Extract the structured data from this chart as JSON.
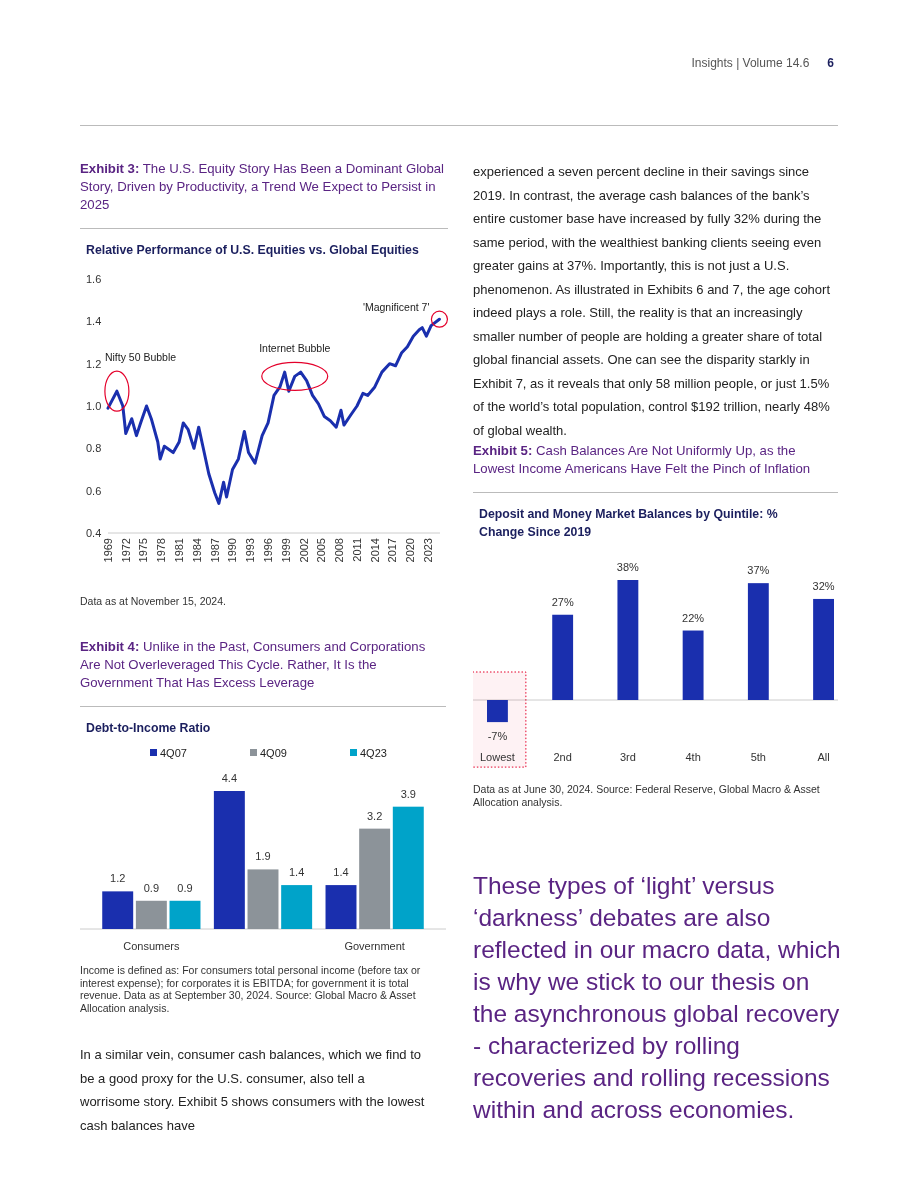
{
  "chart_data": [
    {
      "type": "other",
      "annotations": [
        "Insights | Volume 14.6",
        "6"
      ]
    },
    {
      "type": "line",
      "title": "Exhibit 3: The U.S. Equity Story Has Been a Dominant Global Story, Driven by Productivity, a Trend We Expect to Persist in 2025",
      "subtitle": "Relative Performance of U.S. Equities vs. Global Equities",
      "x": [
        1969,
        1970.5,
        1971.5,
        1972,
        1973,
        1973.8,
        1974.5,
        1975.5,
        1976.3,
        1977.4,
        1977.8,
        1978.5,
        1980,
        1981,
        1981.7,
        1982.5,
        1983.5,
        1984.3,
        1985,
        1986,
        1987,
        1987.7,
        1988.5,
        1989,
        1990,
        1991,
        1992,
        1992.7,
        1993.8,
        1995,
        1996,
        1997,
        1998,
        1998.8,
        1999.5,
        2000.5,
        2001.5,
        2002.5,
        2003.5,
        2004.5,
        2005.5,
        2006.5,
        2007.5,
        2008.3,
        2008.8,
        2010,
        2011,
        2012,
        2012.8,
        2014,
        2015.2,
        2016.5,
        2017.5,
        2018.5,
        2019.5,
        2020.5,
        2021.5,
        2022,
        2022.7,
        2023.5,
        2024.9
      ],
      "values": [
        0.99,
        1.07,
        1.0,
        0.87,
        0.94,
        0.86,
        0.92,
        1.0,
        0.94,
        0.83,
        0.75,
        0.81,
        0.78,
        0.83,
        0.92,
        0.89,
        0.8,
        0.9,
        0.81,
        0.68,
        0.59,
        0.54,
        0.64,
        0.57,
        0.7,
        0.75,
        0.88,
        0.78,
        0.73,
        0.86,
        0.92,
        1.05,
        1.09,
        1.16,
        1.07,
        1.14,
        1.16,
        1.12,
        1.05,
        1.01,
        0.95,
        0.93,
        0.9,
        0.98,
        0.91,
        0.96,
        1.0,
        1.06,
        1.05,
        1.09,
        1.16,
        1.2,
        1.19,
        1.25,
        1.28,
        1.33,
        1.36,
        1.37,
        1.33,
        1.38,
        1.41
      ],
      "color": "#1a2fae",
      "xlim": [
        1969,
        2025
      ],
      "xticks": [
        1969,
        1972,
        1975,
        1978,
        1981,
        1984,
        1987,
        1990,
        1993,
        1996,
        1999,
        2002,
        2005,
        2008,
        2011,
        2014,
        2017,
        2020,
        2023
      ],
      "ylim": [
        0.4,
        1.6
      ],
      "yticks": [
        0.4,
        0.6,
        0.8,
        {
          "value": 1,
          "label": "1.0"
        },
        1.2,
        1.4,
        1.6
      ],
      "grid": false,
      "annotations": [
        {
          "text": "Nifty 50 Bubble",
          "x": 1970.5,
          "y": 1.07
        },
        {
          "text": "Internet Bubble",
          "x": 2000.5,
          "y": 1.14
        },
        {
          "text": "'Magnificent 7'",
          "x": 2024.9,
          "y": 1.41
        },
        "Data as at November 15, 2024."
      ]
    },
    {
      "type": "bar",
      "title": "Exhibit 4: Unlike in the Past, Consumers and Corporations Are Not Overleveraged This Cycle. Rather, It Is the Government That Has Excess Leverage",
      "subtitle": "Debt-to-Income Ratio",
      "categories": [
        "Consumers",
        null,
        "Government"
      ],
      "series": [
        {
          "name": "4Q07",
          "color": "#1a2fae",
          "values": [
            1.2,
            4.4,
            1.4
          ]
        },
        {
          "name": "4Q09",
          "color": "#8c9399",
          "values": [
            0.9,
            1.9,
            3.2
          ]
        },
        {
          "name": "4Q23",
          "color": "#00a3c9",
          "values": [
            0.9,
            1.4,
            3.9
          ]
        }
      ],
      "data_labels": true,
      "legend": "top",
      "annotations": [
        "Income is defined as: For consumers total personal income (before tax or interest expense); for corporates it is EBITDA; for government it is total revenue. Data as at September 30, 2024. Source: Global Macro & Asset Allocation analysis."
      ]
    },
    {
      "type": "other",
      "annotations": [
        "In a similar vein, consumer cash balances, which we find to be a good proxy for the U.S. consumer, also tell a worrisome story. Exhibit 5 shows consumers with the lowest cash balances have"
      ]
    },
    {
      "type": "other",
      "annotations": [
        "experienced a seven percent decline in their savings since 2019. In contrast, the average cash balances of the bank’s entire customer base have increased by fully 32% during the same period, with the wealthiest banking clients seeing even greater gains at 37%. Importantly, this is not just a U.S. phenomenon. As illustrated in Exhibits 6 and 7, the age cohort indeed plays a role. Still, the reality is that an increasingly smaller number of people are holding a greater share of total global financial assets. One can see the disparity starkly in Exhibit 7, as it reveals that only 58 million people, or just 1.5% of the world’s total population, control $192 trillion, nearly 48% of global wealth."
      ]
    },
    {
      "type": "bar",
      "title": "Exhibit 5: Cash Balances Are Not Uniformly Up, as the Lowest Income Americans Have Felt the Pinch of Inflation",
      "subtitle": "Deposit and Money Market Balances by Quintile: % Change Since 2019",
      "categories": [
        "Lowest",
        "2nd",
        "3rd",
        "4th",
        "5th",
        "All"
      ],
      "values": [
        -7,
        27,
        38,
        22,
        37,
        32
      ],
      "color": "#1a2fae",
      "value_labels": [
        "-7%",
        "27%",
        "38%",
        "22%",
        "37%",
        "32%"
      ],
      "bands": [
        {
          "axis": "x",
          "from": "Lowest",
          "to": "Lowest",
          "color": "#e4002b"
        }
      ],
      "annotations": [
        "Data as at June 30, 2024. Source: Federal Reserve, Global Macro & Asset Allocation analysis."
      ]
    },
    {
      "type": "other",
      "annotations": [
        "These types of ‘light’ versus ‘darkness’ debates are also reflected in our macro data, which is why we stick to our thesis on the asynchronous global recovery - characterized by rolling recoveries and rolling recessions within and across economies."
      ]
    }
  ]
}
